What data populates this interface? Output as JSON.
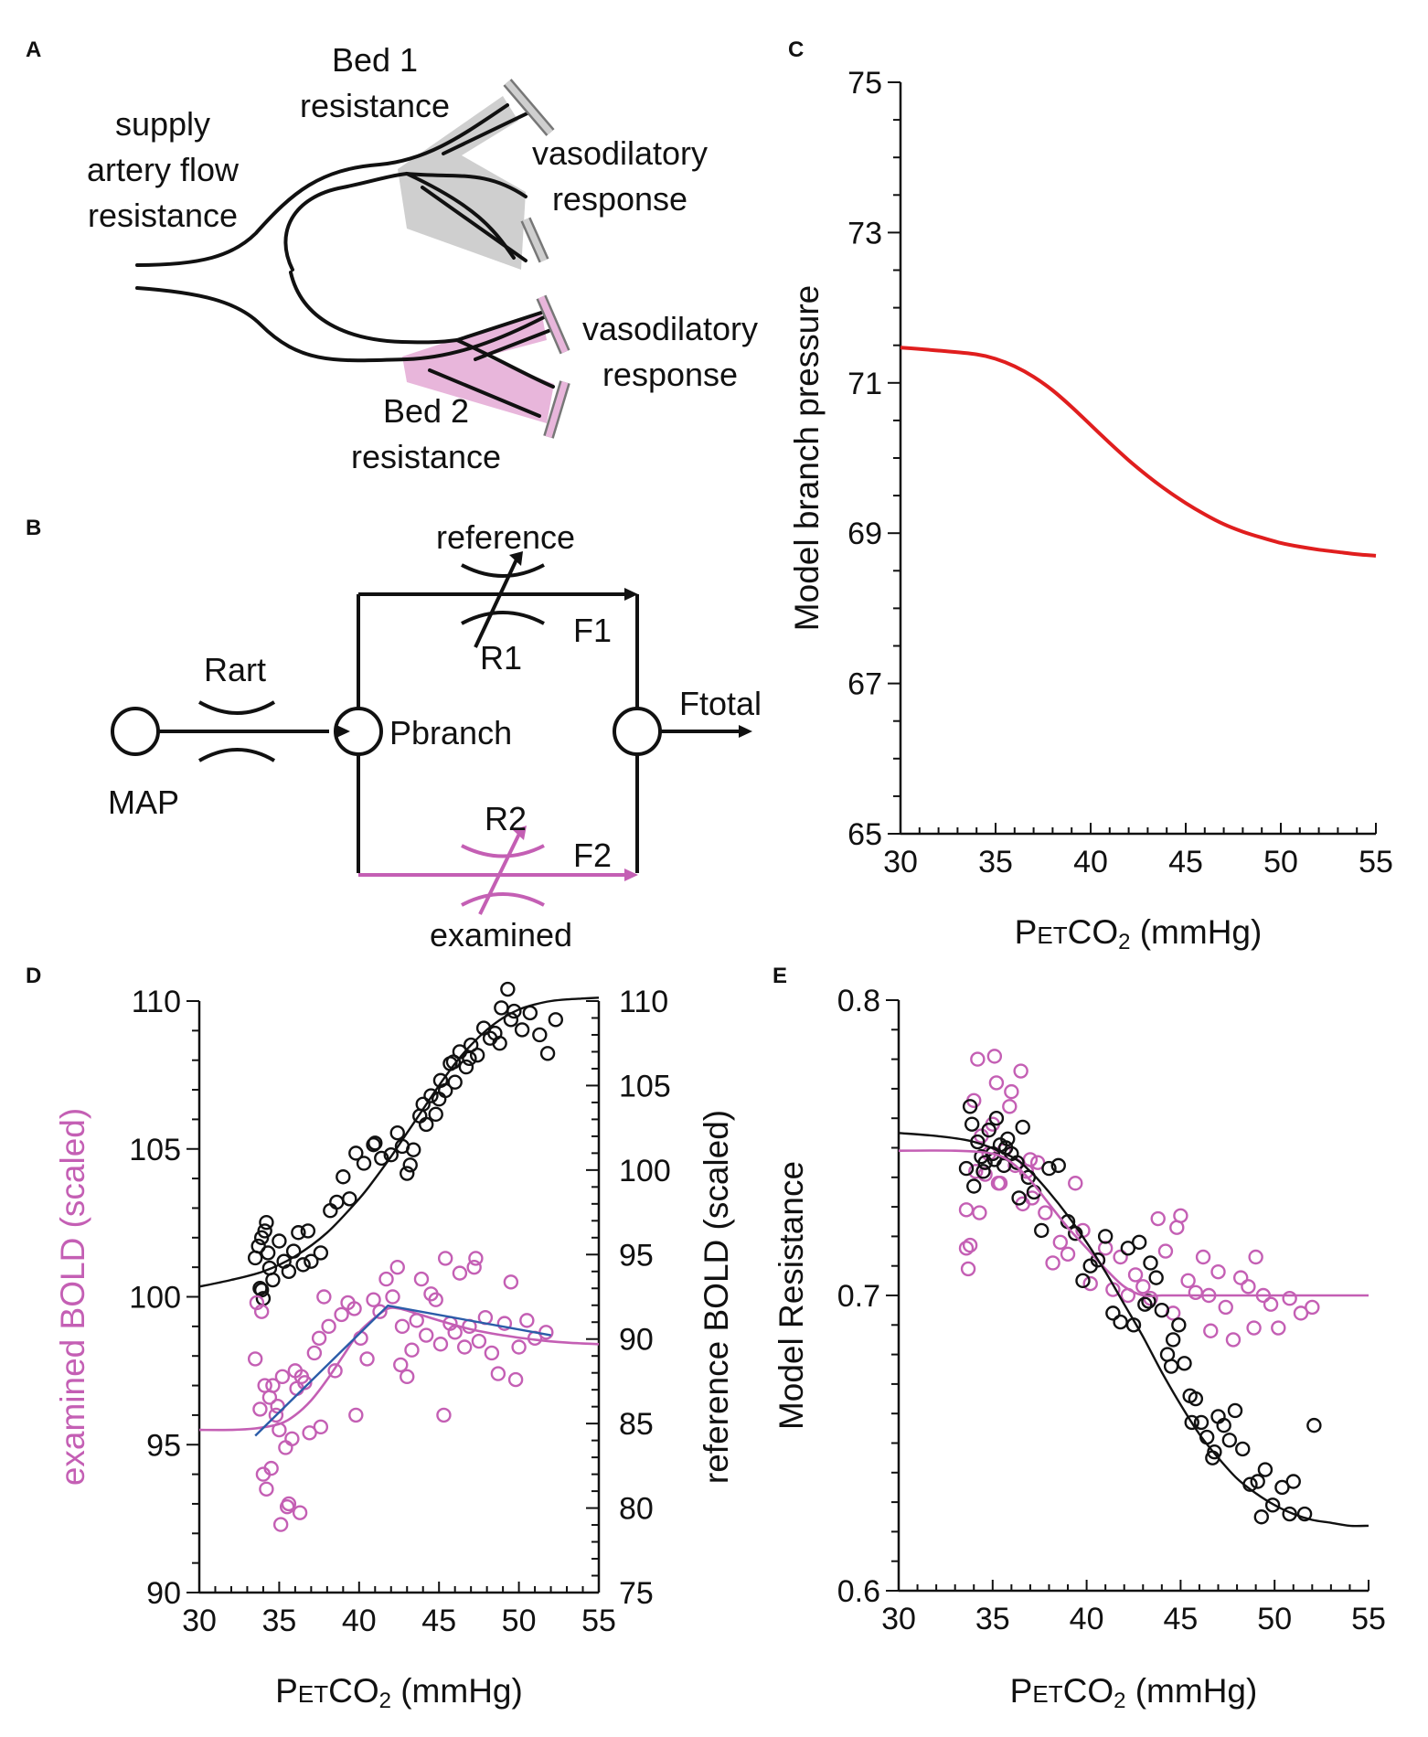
{
  "colors": {
    "magenta": "#c45fb4",
    "magenta_light": "#e8b6db",
    "gray_light": "#cfcfcf",
    "red": "#e01e1e",
    "blue": "#2b5ca8",
    "black": "#111111"
  },
  "panel_a": {
    "letter": "A",
    "supply_label": [
      "supply",
      "artery  flow",
      "resistance"
    ],
    "bed1_label": [
      "Bed 1",
      "resistance"
    ],
    "bed2_label": [
      "Bed 2",
      "resistance"
    ],
    "vaso1_label": [
      "vasodilatory",
      "response"
    ],
    "vaso2_label": [
      "vasodilatory",
      "response"
    ]
  },
  "panel_b": {
    "letter": "B",
    "reference": "reference",
    "examined": "examined",
    "r1": "R1",
    "r2": "R2",
    "f1": "F1",
    "f2": "F2",
    "rart": "Rart",
    "pbranch": "Pbranch",
    "ftotal": "Ftotal",
    "map": "MAP"
  },
  "chart_data": [
    {
      "panel": "C",
      "type": "line",
      "title": "",
      "xlabel_parts": [
        "P",
        "ET",
        "CO",
        "2",
        " (mmHg)"
      ],
      "ylabel": "Model branch pressure",
      "xlim": [
        30,
        55
      ],
      "ylim": [
        65,
        75
      ],
      "xticks": [
        30,
        35,
        40,
        45,
        50,
        55
      ],
      "yticks": [
        65,
        67,
        69,
        71,
        73,
        75
      ],
      "series": [
        {
          "name": "branch pressure",
          "color": "#e01e1e",
          "x": [
            30,
            32,
            34,
            35,
            36,
            37,
            38,
            39,
            40,
            41,
            42,
            43,
            44,
            45,
            46,
            47,
            48,
            49,
            50,
            51,
            52,
            53,
            54,
            55
          ],
          "y": [
            71.47,
            71.43,
            71.38,
            71.32,
            71.22,
            71.08,
            70.9,
            70.68,
            70.44,
            70.2,
            69.97,
            69.76,
            69.57,
            69.4,
            69.25,
            69.12,
            69.02,
            68.94,
            68.87,
            68.82,
            68.78,
            68.75,
            68.72,
            68.7
          ]
        }
      ]
    },
    {
      "panel": "D",
      "type": "scatter",
      "title": "",
      "xlabel_parts": [
        "P",
        "ET",
        "CO",
        "2",
        " (mmHg)"
      ],
      "ylabel_left": "examined BOLD (scaled)",
      "ylabel_right": "reference BOLD (scaled)",
      "xlim": [
        30,
        55
      ],
      "ylim_left": [
        90,
        110
      ],
      "ylim_right": [
        75,
        110
      ],
      "xticks": [
        30,
        35,
        40,
        45,
        50,
        55
      ],
      "yticks_left": [
        90,
        95,
        100,
        105,
        110
      ],
      "yticks_right": [
        75,
        80,
        85,
        90,
        95,
        100,
        105,
        110
      ],
      "series": [
        {
          "name": "reference BOLD points",
          "axis": "right",
          "color": "#111111",
          "x": [
            33.5,
            33.7,
            33.9,
            34.1,
            34.3,
            34.0,
            33.8,
            34.4,
            35.0,
            35.3,
            35.6,
            35.9,
            36.2,
            36.5,
            37.0,
            37.6,
            38.2,
            39.0,
            39.4,
            39.8,
            40.3,
            40.9,
            41.4,
            42.0,
            42.4,
            42.7,
            43.0,
            43.4,
            43.8,
            44.2,
            44.5,
            44.8,
            45.1,
            45.4,
            45.7,
            46.0,
            46.3,
            46.7,
            47.0,
            47.4,
            47.8,
            48.2,
            48.5,
            48.9,
            49.3,
            49.7,
            50.2,
            50.7,
            51.3,
            51.8,
            52.3,
            34.6,
            36.8,
            38.6,
            41.0,
            43.2,
            45.0,
            46.9,
            48.8,
            33.9,
            34.2,
            44.0,
            45.9,
            49.5
          ],
          "y": [
            94.8,
            95.5,
            96.0,
            96.4,
            95.1,
            92.4,
            93.0,
            94.2,
            95.8,
            94.6,
            94.0,
            95.2,
            96.3,
            94.4,
            94.6,
            95.1,
            97.6,
            99.6,
            98.3,
            101.0,
            100.4,
            101.5,
            100.7,
            100.9,
            102.2,
            101.4,
            99.8,
            101.2,
            103.2,
            102.7,
            104.4,
            103.3,
            105.3,
            104.7,
            106.3,
            105.2,
            107.0,
            106.1,
            107.4,
            106.8,
            108.4,
            107.8,
            108.1,
            109.6,
            110.7,
            109.4,
            108.3,
            109.3,
            108.0,
            106.9,
            108.9,
            93.5,
            96.4,
            98.1,
            101.6,
            100.3,
            104.2,
            106.6,
            107.5,
            92.9,
            96.9,
            103.9,
            106.4,
            108.9
          ]
        },
        {
          "name": "examined BOLD points",
          "axis": "left",
          "color": "#c45fb4",
          "x": [
            33.5,
            33.8,
            34.0,
            34.2,
            34.4,
            34.6,
            34.8,
            35.0,
            35.2,
            35.4,
            35.6,
            35.8,
            36.0,
            36.3,
            36.6,
            36.9,
            37.2,
            37.5,
            37.8,
            38.1,
            38.5,
            38.9,
            39.3,
            39.7,
            40.1,
            40.5,
            40.9,
            41.3,
            41.7,
            42.1,
            42.4,
            42.7,
            43.0,
            43.3,
            43.6,
            43.9,
            44.2,
            44.5,
            44.8,
            45.1,
            45.4,
            45.7,
            46.0,
            46.3,
            46.6,
            46.9,
            47.2,
            47.5,
            47.9,
            48.3,
            48.7,
            49.1,
            49.5,
            50.0,
            50.5,
            51.0,
            51.7,
            33.6,
            33.9,
            34.1,
            34.5,
            35.1,
            35.5,
            36.4,
            34.9,
            36.1,
            37.6,
            39.8,
            42.6,
            45.3,
            47.3,
            49.8
          ],
          "y": [
            97.9,
            96.2,
            94.0,
            93.5,
            96.6,
            97.0,
            96.0,
            95.5,
            97.3,
            94.9,
            93.0,
            95.2,
            97.5,
            92.7,
            97.1,
            95.4,
            98.1,
            98.6,
            100.0,
            99.0,
            97.5,
            99.4,
            99.8,
            99.6,
            98.6,
            97.9,
            99.9,
            99.5,
            100.6,
            100.0,
            101.0,
            99.0,
            97.3,
            98.2,
            99.2,
            100.6,
            98.7,
            100.1,
            99.9,
            98.4,
            101.3,
            99.1,
            98.8,
            100.8,
            98.3,
            99.0,
            101.0,
            98.5,
            99.3,
            98.1,
            97.4,
            99.1,
            100.5,
            98.3,
            99.2,
            98.6,
            98.8,
            99.8,
            99.5,
            97.0,
            94.2,
            92.3,
            92.9,
            97.3,
            96.3,
            96.9,
            95.6,
            96.0,
            97.7,
            96.0,
            101.3,
            97.2
          ],
          "curve_x": [
            30,
            32,
            33.5,
            35,
            36,
            37,
            38,
            39,
            40,
            41,
            41.8,
            42.5,
            43.5,
            45,
            47,
            49,
            51,
            53,
            55
          ],
          "curve_y": [
            95.5,
            95.5,
            95.55,
            95.7,
            96.0,
            96.5,
            97.2,
            98.0,
            98.8,
            99.3,
            99.6,
            99.6,
            99.45,
            99.2,
            98.9,
            98.7,
            98.55,
            98.45,
            98.4
          ]
        },
        {
          "name": "reference BOLD fit",
          "axis": "right",
          "color": "#111111",
          "x": [
            30,
            32,
            34,
            36,
            38,
            40,
            41,
            42,
            43,
            44,
            45,
            46,
            47,
            48,
            49,
            50,
            51,
            52,
            53,
            54,
            55
          ],
          "y": [
            93.1,
            93.5,
            94.0,
            94.9,
            96.3,
            98.3,
            99.5,
            100.8,
            102.2,
            103.6,
            105.0,
            106.3,
            107.4,
            108.3,
            109.0,
            109.5,
            109.8,
            110.0,
            110.1,
            110.15,
            110.2
          ]
        },
        {
          "name": "examined BOLD linear segments",
          "axis": "left",
          "color": "#2b5ca8",
          "x": [
            33.5,
            41.8,
            52.0
          ],
          "y": [
            95.3,
            99.7,
            98.7
          ]
        }
      ]
    },
    {
      "panel": "E",
      "type": "scatter",
      "title": "",
      "xlabel_parts": [
        "P",
        "ET",
        "CO",
        "2",
        " (mmHg)"
      ],
      "ylabel": "Model Resistance",
      "xlim": [
        30,
        55
      ],
      "ylim": [
        0.6,
        0.8
      ],
      "xticks": [
        30,
        35,
        40,
        45,
        50,
        55
      ],
      "yticks": [
        0.6,
        0.7,
        0.8
      ],
      "series": [
        {
          "name": "examined bed resistance",
          "color": "#c45fb4",
          "x": [
            33.6,
            33.8,
            34.0,
            34.2,
            34.4,
            34.6,
            34.8,
            35.0,
            35.2,
            35.4,
            35.6,
            35.9,
            36.2,
            36.5,
            36.8,
            37.1,
            37.4,
            37.8,
            38.2,
            38.6,
            39.0,
            39.4,
            39.8,
            40.2,
            40.6,
            41.0,
            41.4,
            41.8,
            42.2,
            42.6,
            43.0,
            43.4,
            43.8,
            44.2,
            44.6,
            45.0,
            45.4,
            45.8,
            46.2,
            46.6,
            47.0,
            47.4,
            47.8,
            48.2,
            48.6,
            49.0,
            49.4,
            49.8,
            50.2,
            50.8,
            51.4,
            52.0,
            33.7,
            34.3,
            35.1,
            36.0,
            36.6,
            33.6,
            34.1,
            35.3,
            37.0,
            44.8,
            46.5,
            48.9
          ],
          "y": [
            0.729,
            0.717,
            0.766,
            0.78,
            0.754,
            0.741,
            0.748,
            0.758,
            0.772,
            0.738,
            0.749,
            0.764,
            0.744,
            0.776,
            0.742,
            0.733,
            0.745,
            0.728,
            0.711,
            0.718,
            0.714,
            0.738,
            0.722,
            0.704,
            0.712,
            0.716,
            0.702,
            0.713,
            0.7,
            0.707,
            0.703,
            0.699,
            0.726,
            0.715,
            0.694,
            0.727,
            0.705,
            0.701,
            0.713,
            0.688,
            0.708,
            0.696,
            0.685,
            0.706,
            0.703,
            0.713,
            0.7,
            0.697,
            0.689,
            0.699,
            0.694,
            0.696,
            0.709,
            0.728,
            0.781,
            0.769,
            0.731,
            0.716,
            0.742,
            0.738,
            0.746,
            0.723,
            0.7,
            0.689
          ],
          "curve_x": [
            30,
            33,
            35,
            36,
            37,
            38,
            39,
            40,
            41,
            42,
            43,
            44,
            45,
            47,
            50,
            55
          ],
          "curve_y": [
            0.749,
            0.749,
            0.748,
            0.745,
            0.739,
            0.731,
            0.723,
            0.716,
            0.709,
            0.703,
            0.7,
            0.7,
            0.7,
            0.7,
            0.7,
            0.7
          ]
        },
        {
          "name": "reference bed resistance",
          "color": "#111111",
          "x": [
            33.6,
            33.8,
            34.0,
            34.2,
            34.4,
            34.6,
            34.8,
            35.0,
            35.2,
            35.4,
            35.6,
            35.8,
            36.0,
            36.3,
            36.6,
            36.9,
            37.2,
            37.6,
            38.0,
            38.5,
            39.0,
            39.4,
            39.8,
            40.2,
            40.6,
            41.0,
            41.4,
            41.8,
            42.2,
            42.5,
            42.8,
            43.1,
            43.4,
            43.7,
            44.0,
            44.3,
            44.6,
            44.9,
            45.2,
            45.5,
            45.8,
            46.1,
            46.4,
            46.7,
            47.0,
            47.3,
            47.6,
            47.9,
            48.3,
            48.7,
            49.1,
            49.5,
            49.9,
            50.4,
            51.0,
            51.6,
            52.1,
            33.9,
            34.5,
            35.1,
            35.7,
            36.4,
            43.3,
            44.5,
            45.6,
            46.8,
            49.3,
            50.8
          ],
          "y": [
            0.743,
            0.764,
            0.737,
            0.752,
            0.747,
            0.745,
            0.756,
            0.748,
            0.76,
            0.751,
            0.744,
            0.753,
            0.748,
            0.745,
            0.757,
            0.74,
            0.735,
            0.722,
            0.743,
            0.744,
            0.725,
            0.721,
            0.705,
            0.71,
            0.712,
            0.72,
            0.694,
            0.691,
            0.716,
            0.69,
            0.718,
            0.697,
            0.711,
            0.706,
            0.695,
            0.68,
            0.685,
            0.69,
            0.677,
            0.666,
            0.665,
            0.657,
            0.652,
            0.645,
            0.659,
            0.656,
            0.651,
            0.661,
            0.648,
            0.636,
            0.637,
            0.641,
            0.629,
            0.635,
            0.637,
            0.626,
            0.656,
            0.758,
            0.742,
            0.746,
            0.75,
            0.733,
            0.698,
            0.676,
            0.657,
            0.647,
            0.625,
            0.626
          ],
          "curve_x": [
            30,
            32,
            34,
            36,
            37,
            38,
            39,
            40,
            41,
            42,
            43,
            44,
            45,
            46,
            47,
            48,
            49,
            50,
            51,
            52,
            53,
            54,
            55
          ],
          "curve_y": [
            0.755,
            0.754,
            0.752,
            0.747,
            0.742,
            0.735,
            0.727,
            0.718,
            0.708,
            0.697,
            0.686,
            0.674,
            0.663,
            0.653,
            0.645,
            0.638,
            0.633,
            0.629,
            0.626,
            0.624,
            0.623,
            0.622,
            0.622
          ]
        }
      ]
    }
  ]
}
